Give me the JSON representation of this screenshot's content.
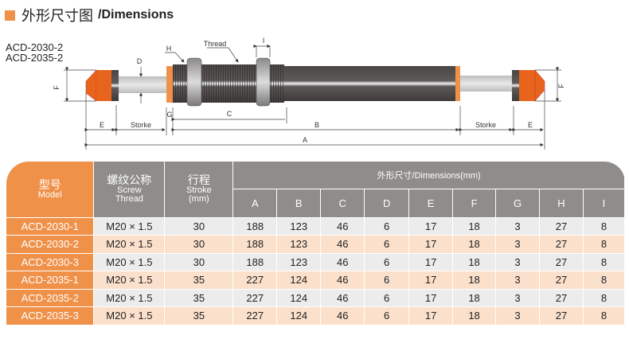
{
  "title": {
    "cn": "外形尺寸图",
    "en": "/Dimensions"
  },
  "diagram": {
    "models": [
      "ACD-2030-2",
      "ACD-2035-2"
    ],
    "labels": {
      "thread": "Thread",
      "h": "H",
      "i": "I",
      "d": "D",
      "f": "F",
      "g": "G",
      "c": "C",
      "b": "B",
      "a": "A",
      "e": "E",
      "stroke": "Storke"
    },
    "colors": {
      "cap": "#e8641c",
      "body": "#5a5656",
      "rod": "#cfcfcf",
      "accent": "#f0914a"
    }
  },
  "table": {
    "headers": {
      "model": {
        "cn": "型号",
        "en": "Model"
      },
      "thread": {
        "cn": "螺纹公称",
        "en1": "Screw",
        "en2": "Thread"
      },
      "stroke": {
        "cn": "行程",
        "en1": "Stroke",
        "en2": "(mm)"
      },
      "dimensions": "外形尺寸/Dimensions(mm)",
      "letters": [
        "A",
        "B",
        "C",
        "D",
        "E",
        "F",
        "G",
        "H",
        "I"
      ]
    },
    "rows": [
      [
        "ACD-2030-1",
        "M20 × 1.5",
        "30",
        "188",
        "123",
        "46",
        "6",
        "17",
        "18",
        "3",
        "27",
        "8"
      ],
      [
        "ACD-2030-2",
        "M20 × 1.5",
        "30",
        "188",
        "123",
        "46",
        "6",
        "17",
        "18",
        "3",
        "27",
        "8"
      ],
      [
        "ACD-2030-3",
        "M20 × 1.5",
        "30",
        "188",
        "123",
        "46",
        "6",
        "17",
        "18",
        "3",
        "27",
        "8"
      ],
      [
        "ACD-2035-1",
        "M20 × 1.5",
        "35",
        "227",
        "124",
        "46",
        "6",
        "17",
        "18",
        "3",
        "27",
        "8"
      ],
      [
        "ACD-2035-2",
        "M20 × 1.5",
        "35",
        "227",
        "124",
        "46",
        "6",
        "17",
        "18",
        "3",
        "27",
        "8"
      ],
      [
        "ACD-2035-3",
        "M20 × 1.5",
        "35",
        "227",
        "124",
        "46",
        "6",
        "17",
        "18",
        "3",
        "27",
        "8"
      ]
    ]
  }
}
